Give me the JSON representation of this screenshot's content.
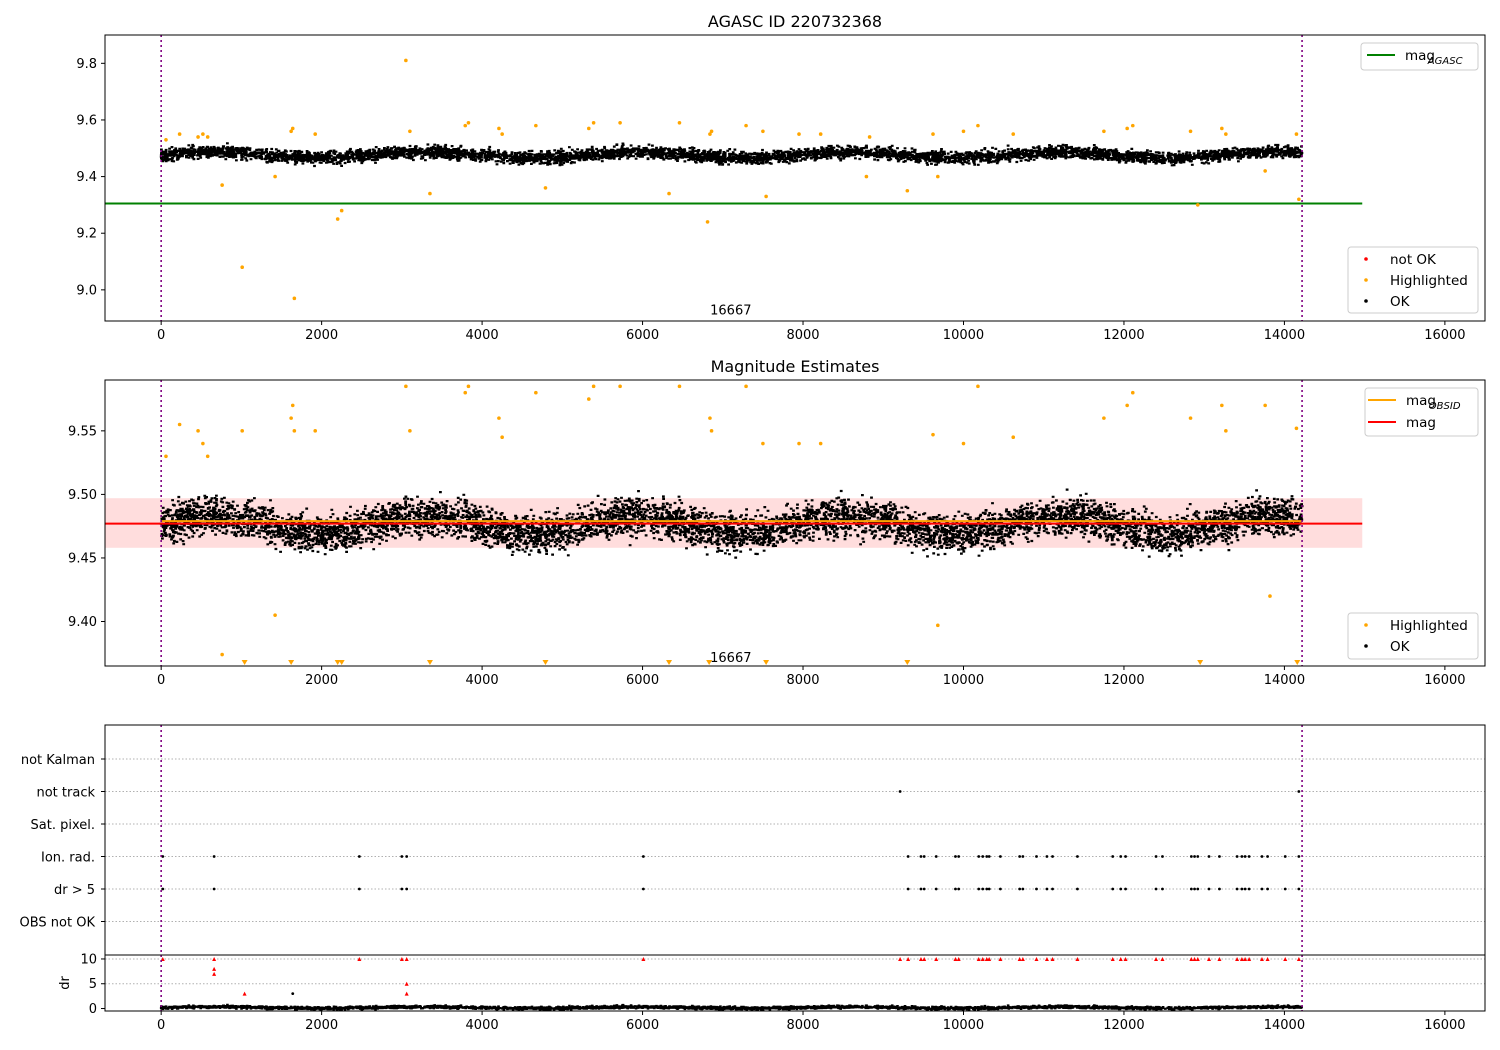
{
  "chart_data": [
    {
      "type": "scatter",
      "id": "agasc",
      "title": "AGASC ID 220732368",
      "xlim": [
        -700,
        16500
      ],
      "ylim": [
        8.89,
        9.9
      ],
      "xticks": [
        0,
        2000,
        4000,
        6000,
        8000,
        10000,
        12000,
        14000,
        16000
      ],
      "xtick_labels": [
        "0",
        "2000",
        "4000",
        "6000",
        "8000",
        "10000",
        "12000",
        "14000",
        "16000"
      ],
      "yticks": [
        9.0,
        9.2,
        9.4,
        9.6,
        9.8
      ],
      "ytick_labels": [
        "9.0",
        "9.2",
        "9.4",
        "9.6",
        "9.8"
      ],
      "vlines": [
        0,
        14220
      ],
      "annotation": {
        "text": "16667",
        "x": 7100,
        "y": 8.93
      },
      "hline": {
        "name": "mag_AGASC",
        "y": 9.305,
        "x": [
          -700,
          14970
        ],
        "color": "#008000"
      },
      "ok_band": {
        "x": [
          0,
          14220
        ],
        "y_center": 9.48,
        "y_spread": 0.03,
        "color": "#000000"
      },
      "series": [
        {
          "name": "not OK",
          "color": "#ff0000",
          "x": [],
          "y": []
        },
        {
          "name": "Highlighted",
          "color": "#ffa500",
          "x": [
            60,
            230,
            460,
            520,
            580,
            760,
            1010,
            1420,
            1620,
            1640,
            1660,
            1920,
            2200,
            2250,
            3050,
            3100,
            3350,
            3790,
            3830,
            4210,
            4250,
            4670,
            4790,
            5330,
            5390,
            5720,
            6330,
            6460,
            6810,
            6840,
            6860,
            7290,
            7500,
            7540,
            7950,
            8220,
            8790,
            8830,
            9300,
            9620,
            9680,
            10000,
            10180,
            10620,
            11750,
            12040,
            12110,
            12830,
            12920,
            13220,
            13270,
            13760,
            14150,
            14180
          ],
          "y": [
            9.53,
            9.55,
            9.54,
            9.55,
            9.54,
            9.37,
            9.08,
            9.4,
            9.56,
            9.57,
            8.97,
            9.55,
            9.25,
            9.28,
            9.81,
            9.56,
            9.34,
            9.58,
            9.59,
            9.57,
            9.55,
            9.58,
            9.36,
            9.57,
            9.59,
            9.59,
            9.34,
            9.59,
            9.24,
            9.55,
            9.56,
            9.58,
            9.56,
            9.33,
            9.55,
            9.55,
            9.4,
            9.54,
            9.35,
            9.55,
            9.4,
            9.56,
            9.58,
            9.55,
            9.56,
            9.57,
            9.58,
            9.56,
            9.3,
            9.57,
            9.55,
            9.42,
            9.55,
            9.32
          ]
        },
        {
          "name": "OK",
          "color": "#000000",
          "x": [],
          "y": []
        }
      ],
      "legends": [
        {
          "position": "upper right",
          "entries": [
            {
              "label": "mag",
              "sub": "AGASC",
              "marker": "line",
              "color": "#008000"
            }
          ]
        },
        {
          "position": "lower right",
          "entries": [
            {
              "label": "not OK",
              "marker": "dot",
              "color": "#ff0000"
            },
            {
              "label": "Highlighted",
              "marker": "dot",
              "color": "#ffa500"
            },
            {
              "label": "OK",
              "marker": "dot",
              "color": "#000000"
            }
          ]
        }
      ]
    },
    {
      "type": "scatter",
      "id": "magest",
      "title": "Magnitude Estimates",
      "xlim": [
        -700,
        16500
      ],
      "ylim": [
        9.365,
        9.59
      ],
      "xticks": [
        0,
        2000,
        4000,
        6000,
        8000,
        10000,
        12000,
        14000,
        16000
      ],
      "xtick_labels": [
        "0",
        "2000",
        "4000",
        "6000",
        "8000",
        "10000",
        "12000",
        "14000",
        "16000"
      ],
      "yticks": [
        9.4,
        9.45,
        9.5,
        9.55
      ],
      "ytick_labels": [
        "9.40",
        "9.45",
        "9.50",
        "9.55"
      ],
      "vlines": [
        0,
        14220
      ],
      "annotation": {
        "text": "16667",
        "x": 7100,
        "y": 9.372
      },
      "band": {
        "x": [
          -700,
          14970
        ],
        "y": [
          9.458,
          9.497
        ],
        "color": "#ffb3b3"
      },
      "lines": [
        {
          "name": "mag_OBSID",
          "y": 9.479,
          "x": [
            0,
            14220
          ],
          "color": "#ffa500"
        },
        {
          "name": "mag",
          "y": 9.477,
          "x": [
            -700,
            14970
          ],
          "color": "#ff0000"
        }
      ],
      "ok_band": {
        "x": [
          0,
          14220
        ],
        "y_center": 9.477,
        "y_spread": 0.02,
        "color": "#000000"
      },
      "series": [
        {
          "name": "Highlighted",
          "color": "#ffa500",
          "x": [
            60,
            230,
            460,
            520,
            580,
            760,
            1010,
            1420,
            1620,
            1640,
            1660,
            1920,
            3050,
            3100,
            3790,
            3830,
            4210,
            4250,
            4670,
            5330,
            5390,
            5720,
            6460,
            6840,
            6860,
            7290,
            7500,
            7950,
            8220,
            9620,
            9680,
            10000,
            10180,
            10620,
            11750,
            12040,
            12110,
            12830,
            13220,
            13270,
            13760,
            13820,
            14150
          ],
          "y": [
            9.53,
            9.555,
            9.55,
            9.54,
            9.53,
            9.374,
            9.55,
            9.405,
            9.56,
            9.57,
            9.55,
            9.55,
            9.585,
            9.55,
            9.58,
            9.585,
            9.56,
            9.545,
            9.58,
            9.575,
            9.585,
            9.585,
            9.585,
            9.56,
            9.55,
            9.585,
            9.54,
            9.54,
            9.54,
            9.547,
            9.397,
            9.54,
            9.585,
            9.545,
            9.56,
            9.57,
            9.58,
            9.56,
            9.57,
            9.55,
            9.57,
            9.42,
            9.552
          ]
        },
        {
          "name": "OK",
          "color": "#000000",
          "x": [],
          "y": []
        }
      ],
      "edge_markers": {
        "color": "#ffa500",
        "x": [
          1040,
          1620,
          2200,
          2250,
          3350,
          4790,
          6330,
          6830,
          7540,
          9300,
          12950,
          14160
        ]
      },
      "legends": [
        {
          "position": "upper right",
          "entries": [
            {
              "label": "mag",
              "sub": "OBSID",
              "marker": "line",
              "color": "#ffa500"
            },
            {
              "label": "mag",
              "marker": "line",
              "color": "#ff0000"
            }
          ]
        },
        {
          "position": "lower right",
          "entries": [
            {
              "label": "Highlighted",
              "marker": "dot",
              "color": "#ffa500"
            },
            {
              "label": "OK",
              "marker": "dot",
              "color": "#000000"
            }
          ]
        }
      ]
    },
    {
      "type": "scatter",
      "id": "flags",
      "xlim": [
        -700,
        16500
      ],
      "categories": [
        "not Kalman",
        "not track",
        "Sat. pixel.",
        "Ion. rad.",
        "dr > 5",
        "OBS not OK"
      ],
      "vlines": [
        0,
        14220
      ],
      "series": [
        {
          "name": "not track",
          "x": [
            9210,
            14180
          ]
        },
        {
          "name": "Ion. rad.",
          "x": [
            20,
            660,
            2470,
            3000,
            3060,
            6010,
            9310,
            9470,
            9510,
            9660,
            9900,
            9940,
            10190,
            10240,
            10290,
            10320,
            10460,
            10700,
            10740,
            10910,
            11040,
            11110,
            11420,
            11860,
            11960,
            12020,
            12400,
            12480,
            12840,
            12880,
            12920,
            13060,
            13190,
            13410,
            13470,
            13510,
            13560,
            13720,
            13790,
            14010,
            14180
          ]
        },
        {
          "name": "dr > 5",
          "x": [
            20,
            660,
            2470,
            3000,
            3060,
            6010,
            9310,
            9470,
            9510,
            9660,
            9900,
            9940,
            10190,
            10240,
            10290,
            10320,
            10460,
            10700,
            10740,
            10910,
            11040,
            11110,
            11420,
            11860,
            11960,
            12020,
            12400,
            12480,
            12840,
            12880,
            12920,
            13060,
            13190,
            13410,
            13470,
            13510,
            13560,
            13720,
            13790,
            14010,
            14180
          ]
        }
      ]
    },
    {
      "type": "scatter",
      "id": "dr",
      "ylabel": "dr",
      "xlim": [
        -700,
        16500
      ],
      "ylim": [
        -0.5,
        10.8
      ],
      "xticks": [
        0,
        2000,
        4000,
        6000,
        8000,
        10000,
        12000,
        14000,
        16000
      ],
      "xtick_labels": [
        "0",
        "2000",
        "4000",
        "6000",
        "8000",
        "10000",
        "12000",
        "14000",
        "16000"
      ],
      "yticks": [
        0,
        5,
        10
      ],
      "ytick_labels": [
        "0",
        "5",
        "10"
      ],
      "vlines": [
        0,
        14220
      ],
      "ok_band": {
        "x": [
          0,
          14220
        ],
        "y_center": 0.4,
        "y_spread": 0.4,
        "color": "#000000"
      },
      "series": [
        {
          "name": "not OK",
          "color": "#ff0000",
          "x": [
            20,
            660,
            660,
            660,
            1040,
            2470,
            3000,
            3060,
            3060,
            3060,
            6010,
            9210,
            9310,
            9470,
            9510,
            9660,
            9900,
            9940,
            10190,
            10240,
            10290,
            10320,
            10460,
            10700,
            10740,
            10910,
            11040,
            11110,
            11420,
            11860,
            11960,
            12020,
            12400,
            12480,
            12840,
            12880,
            12920,
            13060,
            13190,
            13410,
            13470,
            13510,
            13560,
            13720,
            13790,
            14010,
            14180
          ],
          "y": [
            10,
            10,
            8,
            7,
            3,
            10,
            10,
            10,
            5,
            3,
            10,
            10,
            10,
            10,
            10,
            10,
            10,
            10,
            10,
            10,
            10,
            10,
            10,
            10,
            10,
            10,
            10,
            10,
            10,
            10,
            10,
            10,
            10,
            10,
            10,
            10,
            10,
            10,
            10,
            10,
            10,
            10,
            10,
            10,
            10,
            10,
            10
          ]
        },
        {
          "name": "OK",
          "color": "#000000",
          "x": [
            1640
          ],
          "y": [
            3
          ]
        }
      ]
    }
  ]
}
